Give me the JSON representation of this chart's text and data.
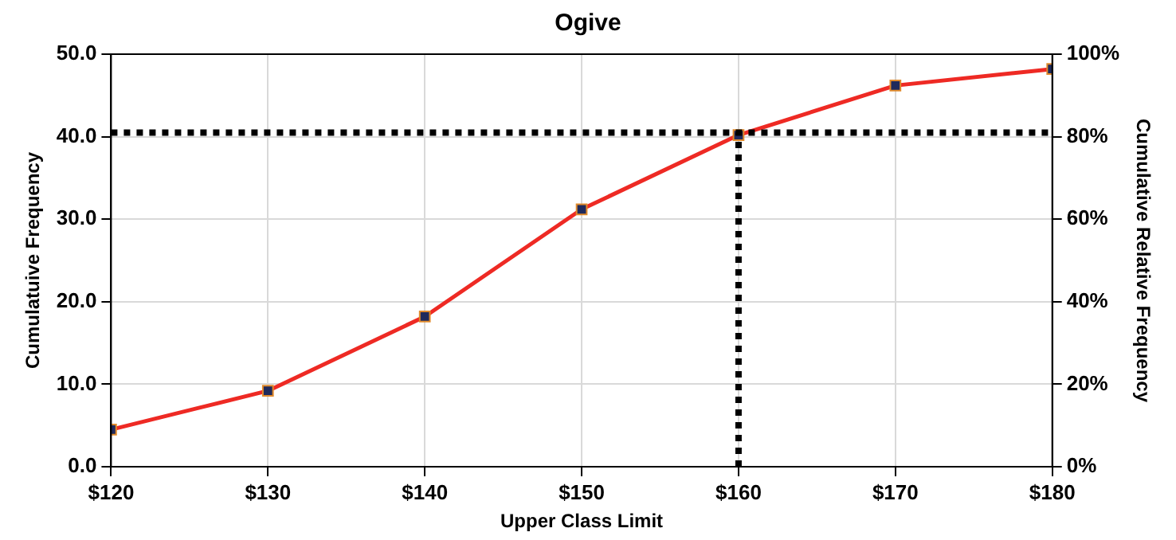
{
  "chart_data": {
    "type": "line",
    "title": "Ogive",
    "xlabel": "Upper Class Limit",
    "ylabel": "Cumulatuive Frequency",
    "y2label": "Cumulative Relative Frequency",
    "x": [
      120,
      130,
      140,
      150,
      160,
      170,
      180
    ],
    "series": [
      {
        "color": "#ee2a24",
        "values": [
          4.5,
          9.2,
          18.2,
          31.2,
          40.2,
          46.2,
          48.2
        ]
      }
    ],
    "xlim": [
      120,
      180
    ],
    "xticks": [
      {
        "value": 120,
        "label": "$120"
      },
      {
        "value": 130,
        "label": "$130"
      },
      {
        "value": 140,
        "label": "$140"
      },
      {
        "value": 150,
        "label": "$150"
      },
      {
        "value": 160,
        "label": "$160"
      },
      {
        "value": 170,
        "label": "$170"
      },
      {
        "value": 180,
        "label": "$180"
      }
    ],
    "ylim": [
      0,
      50
    ],
    "yticks": [
      {
        "value": 0,
        "label": "0.0"
      },
      {
        "value": 10,
        "label": "10.0"
      },
      {
        "value": 20,
        "label": "20.0"
      },
      {
        "value": 30,
        "label": "30.0"
      },
      {
        "value": 40,
        "label": "40.0"
      },
      {
        "value": 50,
        "label": "50.0"
      }
    ],
    "y2lim": [
      0,
      100
    ],
    "y2ticks": [
      {
        "value": 0,
        "label": "0%"
      },
      {
        "value": 20,
        "label": "20%"
      },
      {
        "value": 40,
        "label": "40%"
      },
      {
        "value": 60,
        "label": "60%"
      },
      {
        "value": 80,
        "label": "80%"
      },
      {
        "value": 100,
        "label": "100%"
      }
    ],
    "ref_lines": [
      {
        "axis": "y",
        "value": 40.5,
        "color": "#000000",
        "line_style": "dotted"
      },
      {
        "axis": "x",
        "value": 160,
        "color": "#000000",
        "line_style": "dotted"
      }
    ],
    "grid": true,
    "legend": false,
    "marker": "square",
    "line_style": "solid"
  }
}
